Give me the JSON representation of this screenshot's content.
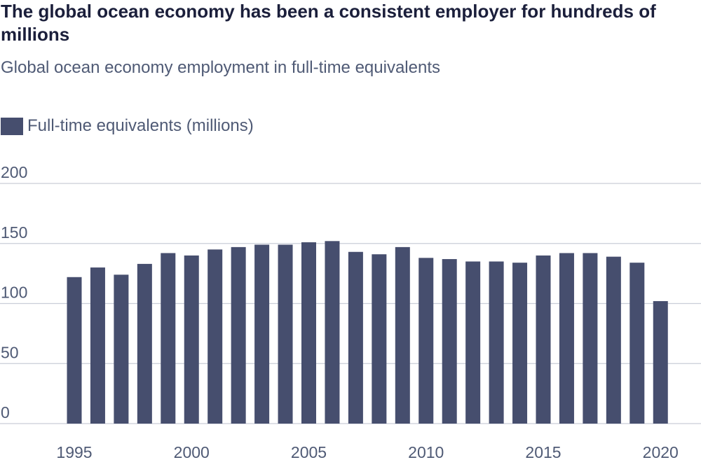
{
  "title": "The global ocean economy has been a consistent employer for hundreds of millions",
  "subtitle": "Global ocean economy employment in full-time equivalents",
  "legend": {
    "label": "Full-time equivalents (millions)"
  },
  "colors": {
    "bar": "#464e6e",
    "grid": "#c9ced8",
    "text": "#4f5a75",
    "title": "#1b1f3b"
  },
  "chart_data": {
    "type": "bar",
    "title": "The global ocean economy has been a consistent employer for hundreds of millions",
    "subtitle": "Global ocean economy employment in full-time equivalents",
    "xlabel": "",
    "ylabel": "",
    "ylim": [
      0,
      200
    ],
    "yticks": [
      0,
      50,
      100,
      150,
      200
    ],
    "xticks": [
      1995,
      2000,
      2005,
      2010,
      2015,
      2020
    ],
    "grid": true,
    "legend_position": "top-left",
    "categories": [
      1995,
      1996,
      1997,
      1998,
      1999,
      2000,
      2001,
      2002,
      2003,
      2004,
      2005,
      2006,
      2007,
      2008,
      2009,
      2010,
      2011,
      2012,
      2013,
      2014,
      2015,
      2016,
      2017,
      2018,
      2019,
      2020
    ],
    "series": [
      {
        "name": "Full-time equivalents (millions)",
        "values": [
          122,
          130,
          124,
          133,
          142,
          140,
          145,
          147,
          149,
          149,
          151,
          152,
          143,
          141,
          147,
          138,
          137,
          135,
          135,
          134,
          140,
          142,
          142,
          139,
          134,
          102
        ]
      }
    ]
  }
}
